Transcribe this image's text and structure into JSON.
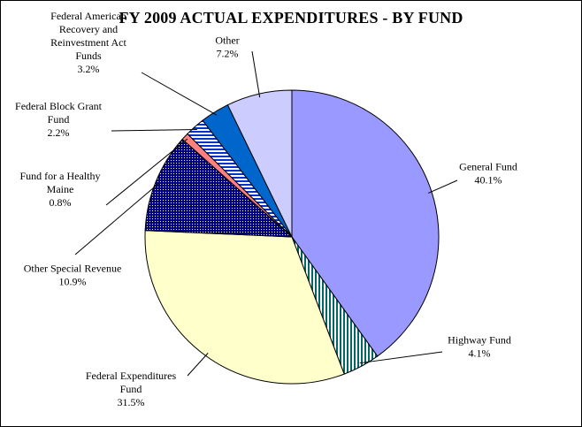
{
  "chart_data": {
    "type": "pie",
    "title": "FY 2009 ACTUAL EXPENDITURES - BY FUND",
    "slices": [
      {
        "name": "General Fund",
        "label_lines": [
          "General Fund"
        ],
        "value": 40.1,
        "value_text": "40.1%",
        "color": "#9999FF",
        "pattern": "solid"
      },
      {
        "name": "Highway Fund",
        "label_lines": [
          "Highway Fund"
        ],
        "value": 4.1,
        "value_text": "4.1%",
        "color": "#006666",
        "pattern": "vertical-stripes"
      },
      {
        "name": "Federal Expenditures Fund",
        "label_lines": [
          "Federal Expenditures",
          "Fund"
        ],
        "value": 31.5,
        "value_text": "31.5%",
        "color": "#FFFFCC",
        "pattern": "solid"
      },
      {
        "name": "Other Special Revenue",
        "label_lines": [
          "Other Special Revenue"
        ],
        "value": 10.9,
        "value_text": "10.9%",
        "color": "#000080",
        "pattern": "grid"
      },
      {
        "name": "Fund for a Healthy Maine",
        "label_lines": [
          "Fund for a Healthy",
          "Maine"
        ],
        "value": 0.8,
        "value_text": "0.8%",
        "color": "#FF8080",
        "pattern": "solid"
      },
      {
        "name": "Federal Block Grant Fund",
        "label_lines": [
          "Federal Block Grant",
          "Fund"
        ],
        "value": 2.2,
        "value_text": "2.2%",
        "color": "#0033CC",
        "pattern": "horizontal-stripes"
      },
      {
        "name": "Federal American Recovery and Reinvestment Act Funds",
        "label_lines": [
          "Federal American",
          "Recovery and",
          "Reinvestment Act",
          "Funds"
        ],
        "value": 3.2,
        "value_text": "3.2%",
        "color": "#0066CC",
        "pattern": "solid"
      },
      {
        "name": "Other",
        "label_lines": [
          "Other"
        ],
        "value": 7.2,
        "value_text": "7.2%",
        "color": "#CCCCFF",
        "pattern": "solid"
      }
    ]
  }
}
